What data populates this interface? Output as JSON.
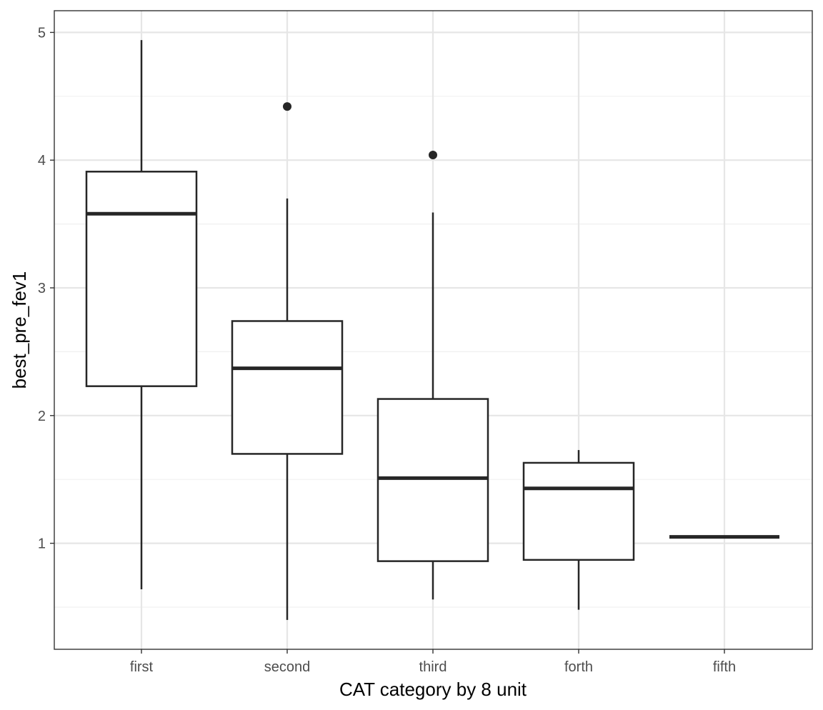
{
  "chart_data": {
    "type": "boxplot",
    "title": "",
    "xlabel": "CAT category by 8 unit",
    "ylabel": "best_pre_fev1",
    "categories": [
      "first",
      "second",
      "third",
      "forth",
      "fifth"
    ],
    "boxes": [
      {
        "category": "first",
        "whisker_low": 0.64,
        "q1": 2.23,
        "median": 3.58,
        "q3": 3.91,
        "whisker_high": 4.94,
        "outliers": []
      },
      {
        "category": "second",
        "whisker_low": 0.4,
        "q1": 1.7,
        "median": 2.37,
        "q3": 2.74,
        "whisker_high": 3.7,
        "outliers": [
          4.42
        ]
      },
      {
        "category": "third",
        "whisker_low": 0.56,
        "q1": 0.86,
        "median": 1.51,
        "q3": 2.13,
        "whisker_high": 3.59,
        "outliers": [
          4.04
        ]
      },
      {
        "category": "forth",
        "whisker_low": 0.48,
        "q1": 0.87,
        "median": 1.43,
        "q3": 1.63,
        "whisker_high": 1.73,
        "outliers": []
      },
      {
        "category": "fifth",
        "whisker_low": 1.05,
        "q1": 1.05,
        "median": 1.05,
        "q3": 1.05,
        "whisker_high": 1.05,
        "outliers": []
      }
    ],
    "y_ticks": [
      1,
      2,
      3,
      4,
      5
    ],
    "y_tick_labels": [
      "1",
      "2",
      "3",
      "4",
      "5"
    ],
    "ylim": [
      0.17,
      5.17
    ],
    "grid": true,
    "legend": "none",
    "colors": {
      "box_fill": "#ffffff",
      "box_stroke": "#262626",
      "grid_major": "#e6e6e6",
      "grid_minor": "#f0f0f0",
      "panel_border": "#333333"
    }
  }
}
